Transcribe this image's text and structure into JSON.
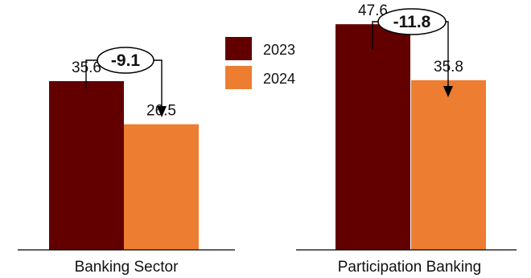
{
  "chart_data": {
    "type": "bar",
    "categories": [
      "Banking Sector",
      "Participation Banking"
    ],
    "series": [
      {
        "name": "2023",
        "values": [
          35.6,
          47.6
        ],
        "color": "#620000"
      },
      {
        "name": "2024",
        "values": [
          26.5,
          35.8
        ],
        "color": "#ED7D31"
      }
    ],
    "value_labels": [
      [
        "35.6",
        "47.6"
      ],
      [
        "26.5",
        "35.8"
      ]
    ],
    "differences": [
      "-9.1",
      "-11.8"
    ],
    "ylim": [
      0,
      50
    ],
    "legend_position": "top-center",
    "grid": false,
    "axis_color": "#000000",
    "annotation_style": "bracket-arrow"
  }
}
